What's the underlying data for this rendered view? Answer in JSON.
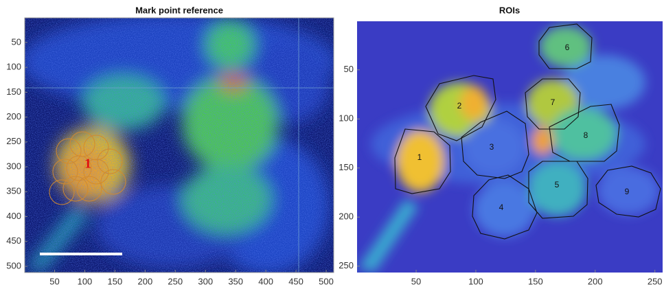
{
  "chart_data": [
    {
      "type": "image",
      "title": "Mark point reference",
      "xlim": [
        0.5,
        512.5
      ],
      "ylim": [
        0.5,
        512.5
      ],
      "y_reversed": true,
      "xticks": [
        50,
        100,
        150,
        200,
        250,
        300,
        350,
        400,
        450,
        500
      ],
      "yticks": [
        50,
        100,
        150,
        200,
        250,
        300,
        350,
        400,
        450,
        500
      ],
      "annotations": [
        "1"
      ]
    },
    {
      "type": "image",
      "title": "ROIs",
      "xlim": [
        0.5,
        256.5
      ],
      "ylim": [
        0.5,
        256.5
      ],
      "y_reversed": true,
      "xticks": [
        50,
        100,
        150,
        200,
        250
      ],
      "yticks": [
        50,
        100,
        150,
        200,
        250
      ],
      "roi_labels": [
        "1",
        "2",
        "3",
        "4",
        "5",
        "6",
        "7",
        "8",
        "9"
      ]
    }
  ]
}
